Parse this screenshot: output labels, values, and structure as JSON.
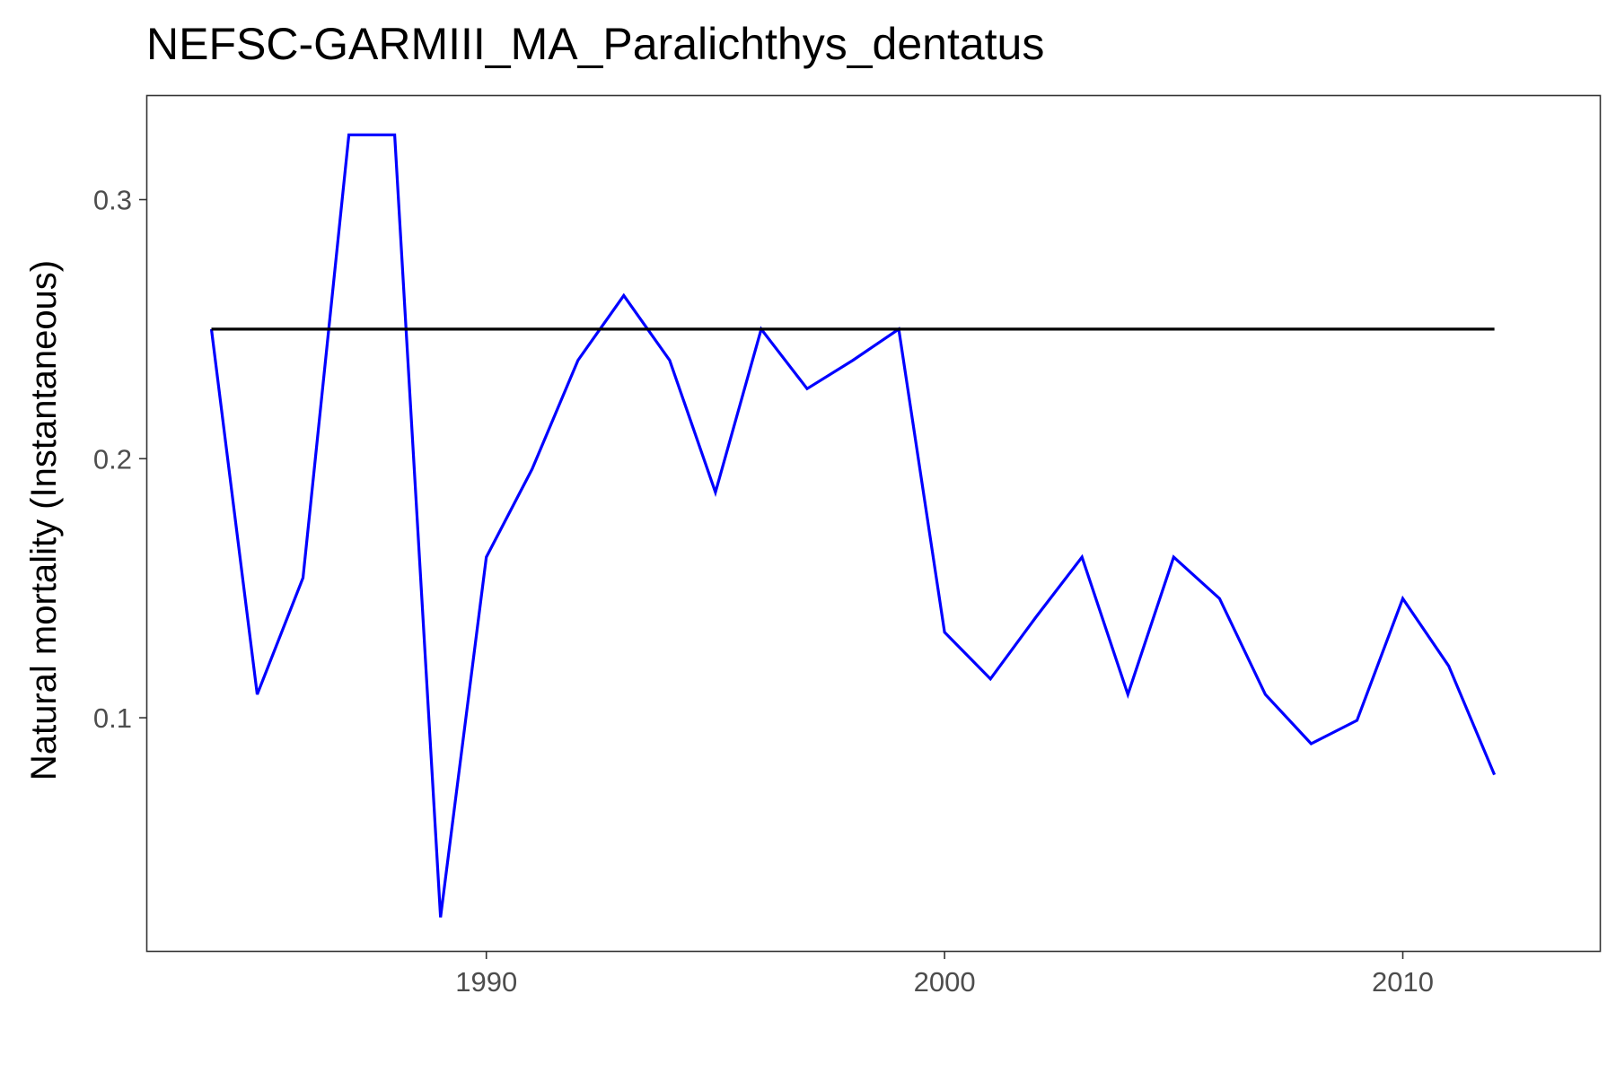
{
  "chart_data": {
    "type": "line",
    "title": "NEFSC-GARMIII_MA_Paralichthys_dentatus",
    "xlabel": "",
    "ylabel": "Natural mortality (Instantaneous)",
    "xlim": [
      1982.6,
      2014.3
    ],
    "ylim": [
      0.01,
      0.34
    ],
    "x_ticks": [
      1990,
      2000,
      2010
    ],
    "y_ticks": [
      0.1,
      0.2,
      0.3
    ],
    "grid": false,
    "legend": "none",
    "x": [
      1984,
      1985,
      1986,
      1987,
      1988,
      1989,
      1990,
      1991,
      1992,
      1993,
      1994,
      1995,
      1996,
      1997,
      1998,
      1999,
      2000,
      2001,
      2002,
      2003,
      2004,
      2005,
      2006,
      2007,
      2008,
      2009,
      2010,
      2011,
      2012
    ],
    "series": [
      {
        "color": "#0000ff",
        "values": [
          0.25,
          0.109,
          0.154,
          0.325,
          0.325,
          0.023,
          0.162,
          0.196,
          0.238,
          0.263,
          0.238,
          0.187,
          0.25,
          0.227,
          0.238,
          0.25,
          0.133,
          0.115,
          0.139,
          0.162,
          0.109,
          0.162,
          0.146,
          0.109,
          0.09,
          0.099,
          0.146,
          0.12,
          0.078
        ]
      },
      {
        "color": "#000000",
        "x": [
          1984,
          2012
        ],
        "values": [
          0.25,
          0.25
        ]
      }
    ]
  }
}
